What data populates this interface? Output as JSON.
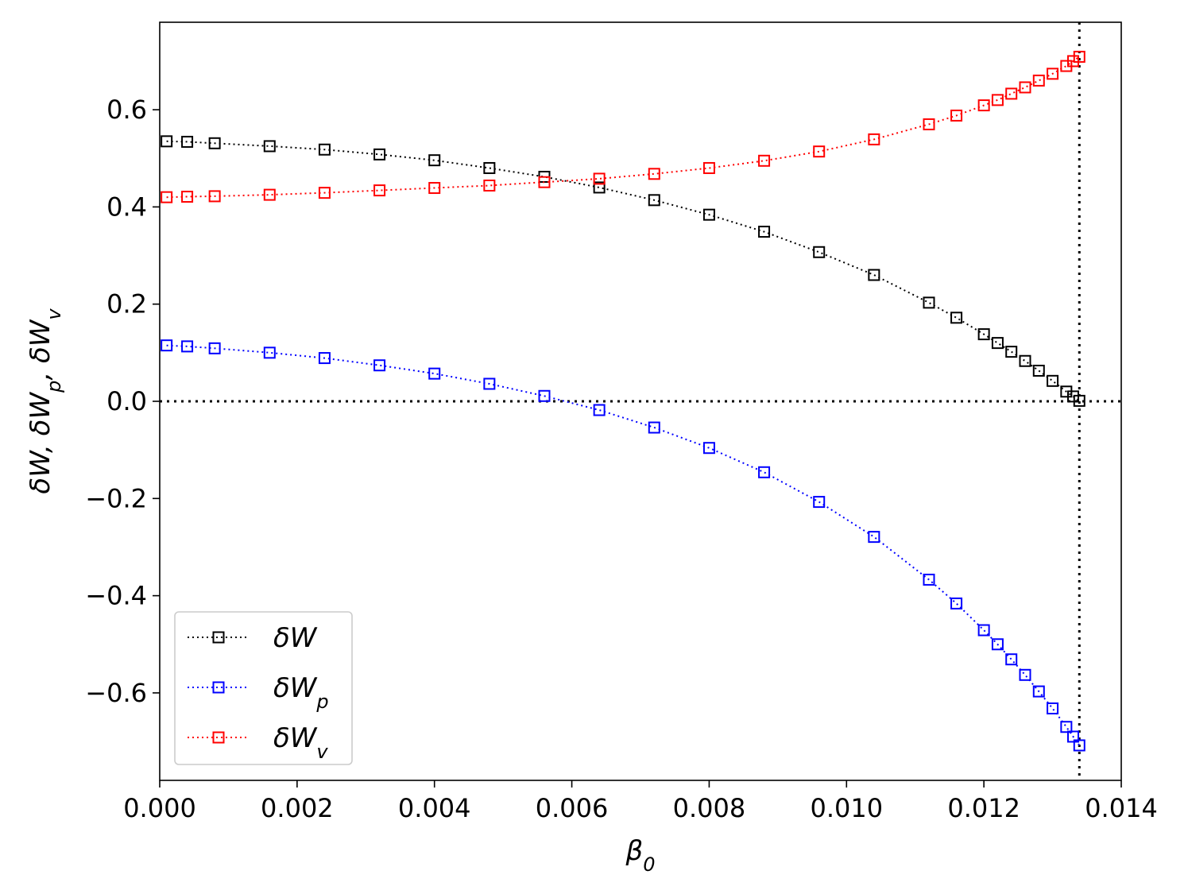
{
  "chart_data": {
    "type": "line",
    "title": "",
    "xlabel": "β",
    "xlabel_sub": "0",
    "ylabel_parts": [
      {
        "t": "δW",
        "sub": ""
      },
      {
        "t": ", δW",
        "sub": "p"
      },
      {
        "t": ", δW",
        "sub": "v"
      }
    ],
    "xlim": [
      0.0,
      0.014
    ],
    "ylim": [
      -0.78,
      0.78
    ],
    "x_ticks": [
      0.0,
      0.002,
      0.004,
      0.006,
      0.008,
      0.01,
      0.012,
      0.014
    ],
    "x_tick_labels": [
      "0.000",
      "0.002",
      "0.004",
      "0.006",
      "0.008",
      "0.010",
      "0.012",
      "0.014"
    ],
    "y_ticks": [
      -0.6,
      -0.4,
      -0.2,
      0.0,
      0.2,
      0.4,
      0.6
    ],
    "y_tick_labels": [
      "−0.6",
      "−0.4",
      "−0.2",
      "0.0",
      "0.2",
      "0.4",
      "0.6"
    ],
    "reference_lines": {
      "horizontal_y": 0.0,
      "vertical_x": 0.01339
    },
    "legend_position": "lower-left",
    "x": [
      0.0001,
      0.0004,
      0.0008,
      0.0016,
      0.0024,
      0.0032,
      0.004,
      0.0048,
      0.0056,
      0.0064,
      0.0072,
      0.008,
      0.0088,
      0.0096,
      0.0104,
      0.0112,
      0.0116,
      0.012,
      0.0122,
      0.0124,
      0.0126,
      0.0128,
      0.013,
      0.0132,
      0.0133,
      0.01339
    ],
    "series": [
      {
        "name": "δW",
        "name_sub": "",
        "color": "#000000",
        "values": [
          0.535,
          0.534,
          0.531,
          0.525,
          0.518,
          0.508,
          0.496,
          0.48,
          0.462,
          0.44,
          0.414,
          0.384,
          0.349,
          0.307,
          0.26,
          0.203,
          0.172,
          0.138,
          0.12,
          0.102,
          0.083,
          0.063,
          0.042,
          0.02,
          0.01,
          0.001
        ]
      },
      {
        "name": "δW",
        "name_sub": "p",
        "color": "#0000ff",
        "values": [
          0.115,
          0.113,
          0.109,
          0.1,
          0.089,
          0.074,
          0.057,
          0.036,
          0.011,
          -0.018,
          -0.054,
          -0.096,
          -0.146,
          -0.207,
          -0.279,
          -0.367,
          -0.416,
          -0.471,
          -0.5,
          -0.531,
          -0.563,
          -0.597,
          -0.632,
          -0.67,
          -0.69,
          -0.708
        ]
      },
      {
        "name": "δW",
        "name_sub": "v",
        "color": "#ff0000",
        "values": [
          0.42,
          0.421,
          0.422,
          0.425,
          0.429,
          0.434,
          0.439,
          0.444,
          0.451,
          0.458,
          0.468,
          0.48,
          0.495,
          0.514,
          0.539,
          0.57,
          0.588,
          0.609,
          0.62,
          0.633,
          0.646,
          0.66,
          0.674,
          0.69,
          0.7,
          0.709
        ]
      }
    ]
  }
}
